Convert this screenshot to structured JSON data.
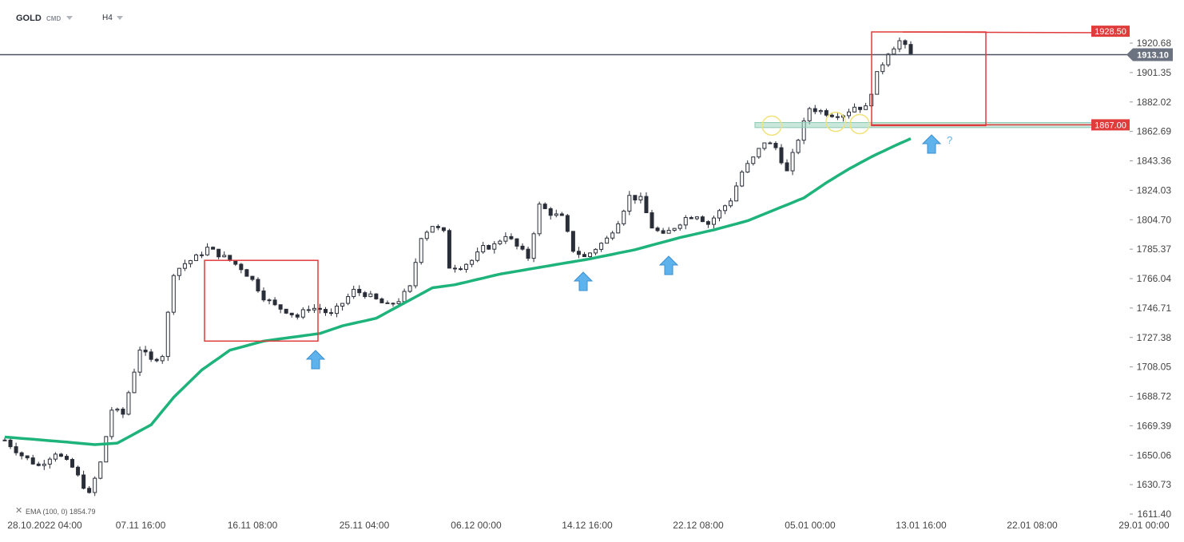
{
  "header": {
    "symbol": "GOLD",
    "symbol_type": "CMD",
    "timeframe": "H4"
  },
  "indicator": {
    "label": "EMA (100, 0) 1854.79",
    "close_icon": "close-icon",
    "color": "#1db37a"
  },
  "colors": {
    "candle": "#2a2e39",
    "ema": "#1db37a",
    "price_line": "#4a5260",
    "box": "#e03c3c",
    "zone": "#9fd3c0",
    "circle": "#f1e27a",
    "arrow": "#5fb3ec",
    "tag_red": "#e03c3c",
    "tag_current": "#6b7280"
  },
  "price_tags": {
    "current": "1913.10",
    "upper": "1928.50",
    "lower": "1867.00"
  },
  "annotations": {
    "question": "?"
  },
  "chart_data": {
    "type": "candlestick",
    "title": "",
    "y_ticks": [
      "1920.68",
      "1901.35",
      "1882.02",
      "1862.69",
      "1843.36",
      "1824.03",
      "1804.70",
      "1785.37",
      "1766.04",
      "1746.71",
      "1727.38",
      "1708.05",
      "1688.72",
      "1669.39",
      "1650.06",
      "1630.73",
      "1611.40"
    ],
    "x_ticks": [
      "28.10.2022 04:00",
      "07.11 16:00",
      "16.11 08:00",
      "25.11 04:00",
      "06.12 00:00",
      "14.12 16:00",
      "22.12 08:00",
      "05.01 00:00",
      "13.01 16:00",
      "22.01 08:00",
      "29.01 00:00"
    ],
    "ylim": [
      1611.4,
      1930
    ],
    "current_price": 1913.1,
    "levels": [
      1928.5,
      1867.0
    ],
    "ema_period": 100,
    "ema_value": 1854.79,
    "price_path": [
      [
        0,
        1660
      ],
      [
        3,
        1650
      ],
      [
        6,
        1643
      ],
      [
        9,
        1652
      ],
      [
        12,
        1642
      ],
      [
        15,
        1624
      ],
      [
        17,
        1645
      ],
      [
        19,
        1680
      ],
      [
        21,
        1677
      ],
      [
        24,
        1720
      ],
      [
        26,
        1712
      ],
      [
        28,
        1716
      ],
      [
        30,
        1770
      ],
      [
        32,
        1776
      ],
      [
        34,
        1780
      ],
      [
        36,
        1786
      ],
      [
        37,
        1784
      ],
      [
        38,
        1782
      ],
      [
        40,
        1778
      ],
      [
        42,
        1773
      ],
      [
        44,
        1765
      ],
      [
        46,
        1754
      ],
      [
        48,
        1748
      ],
      [
        50,
        1745
      ],
      [
        52,
        1741
      ],
      [
        54,
        1747
      ],
      [
        56,
        1746
      ],
      [
        58,
        1742
      ],
      [
        60,
        1750
      ],
      [
        62,
        1758
      ],
      [
        64,
        1756
      ],
      [
        66,
        1752
      ],
      [
        68,
        1748
      ],
      [
        70,
        1752
      ],
      [
        72,
        1760
      ],
      [
        74,
        1794
      ],
      [
        76,
        1801
      ],
      [
        78,
        1796
      ],
      [
        79,
        1774
      ],
      [
        81,
        1774
      ],
      [
        83,
        1778
      ],
      [
        85,
        1786
      ],
      [
        87,
        1788
      ],
      [
        89,
        1795
      ],
      [
        91,
        1787
      ],
      [
        93,
        1780
      ],
      [
        95,
        1814
      ],
      [
        97,
        1809
      ],
      [
        99,
        1806
      ],
      [
        101,
        1785
      ],
      [
        103,
        1780
      ],
      [
        105,
        1786
      ],
      [
        107,
        1792
      ],
      [
        109,
        1804
      ],
      [
        111,
        1820
      ],
      [
        113,
        1818
      ],
      [
        115,
        1800
      ],
      [
        117,
        1794
      ],
      [
        119,
        1800
      ],
      [
        121,
        1806
      ],
      [
        123,
        1808
      ],
      [
        125,
        1802
      ],
      [
        127,
        1810
      ],
      [
        129,
        1818
      ],
      [
        131,
        1836
      ],
      [
        133,
        1845
      ],
      [
        135,
        1856
      ],
      [
        137,
        1852
      ],
      [
        139,
        1836
      ],
      [
        141,
        1858
      ],
      [
        143,
        1878
      ],
      [
        145,
        1876
      ],
      [
        147,
        1874
      ],
      [
        149,
        1874
      ],
      [
        151,
        1879
      ],
      [
        153,
        1878
      ],
      [
        155,
        1900
      ],
      [
        157,
        1915
      ],
      [
        159,
        1922
      ],
      [
        160,
        1918
      ],
      [
        161,
        1913
      ]
    ],
    "ema_path": [
      [
        0,
        1662
      ],
      [
        10,
        1659
      ],
      [
        16,
        1657
      ],
      [
        20,
        1658
      ],
      [
        26,
        1670
      ],
      [
        30,
        1688
      ],
      [
        35,
        1706
      ],
      [
        40,
        1719
      ],
      [
        46,
        1725
      ],
      [
        52,
        1728
      ],
      [
        56,
        1730
      ],
      [
        60,
        1735
      ],
      [
        66,
        1740
      ],
      [
        70,
        1748
      ],
      [
        76,
        1760
      ],
      [
        80,
        1762
      ],
      [
        88,
        1769
      ],
      [
        96,
        1774
      ],
      [
        104,
        1779
      ],
      [
        112,
        1785
      ],
      [
        120,
        1793
      ],
      [
        126,
        1798
      ],
      [
        132,
        1804
      ],
      [
        138,
        1813
      ],
      [
        142,
        1819
      ],
      [
        146,
        1829
      ],
      [
        150,
        1838
      ],
      [
        154,
        1846
      ],
      [
        158,
        1853
      ],
      [
        161,
        1858
      ]
    ]
  }
}
